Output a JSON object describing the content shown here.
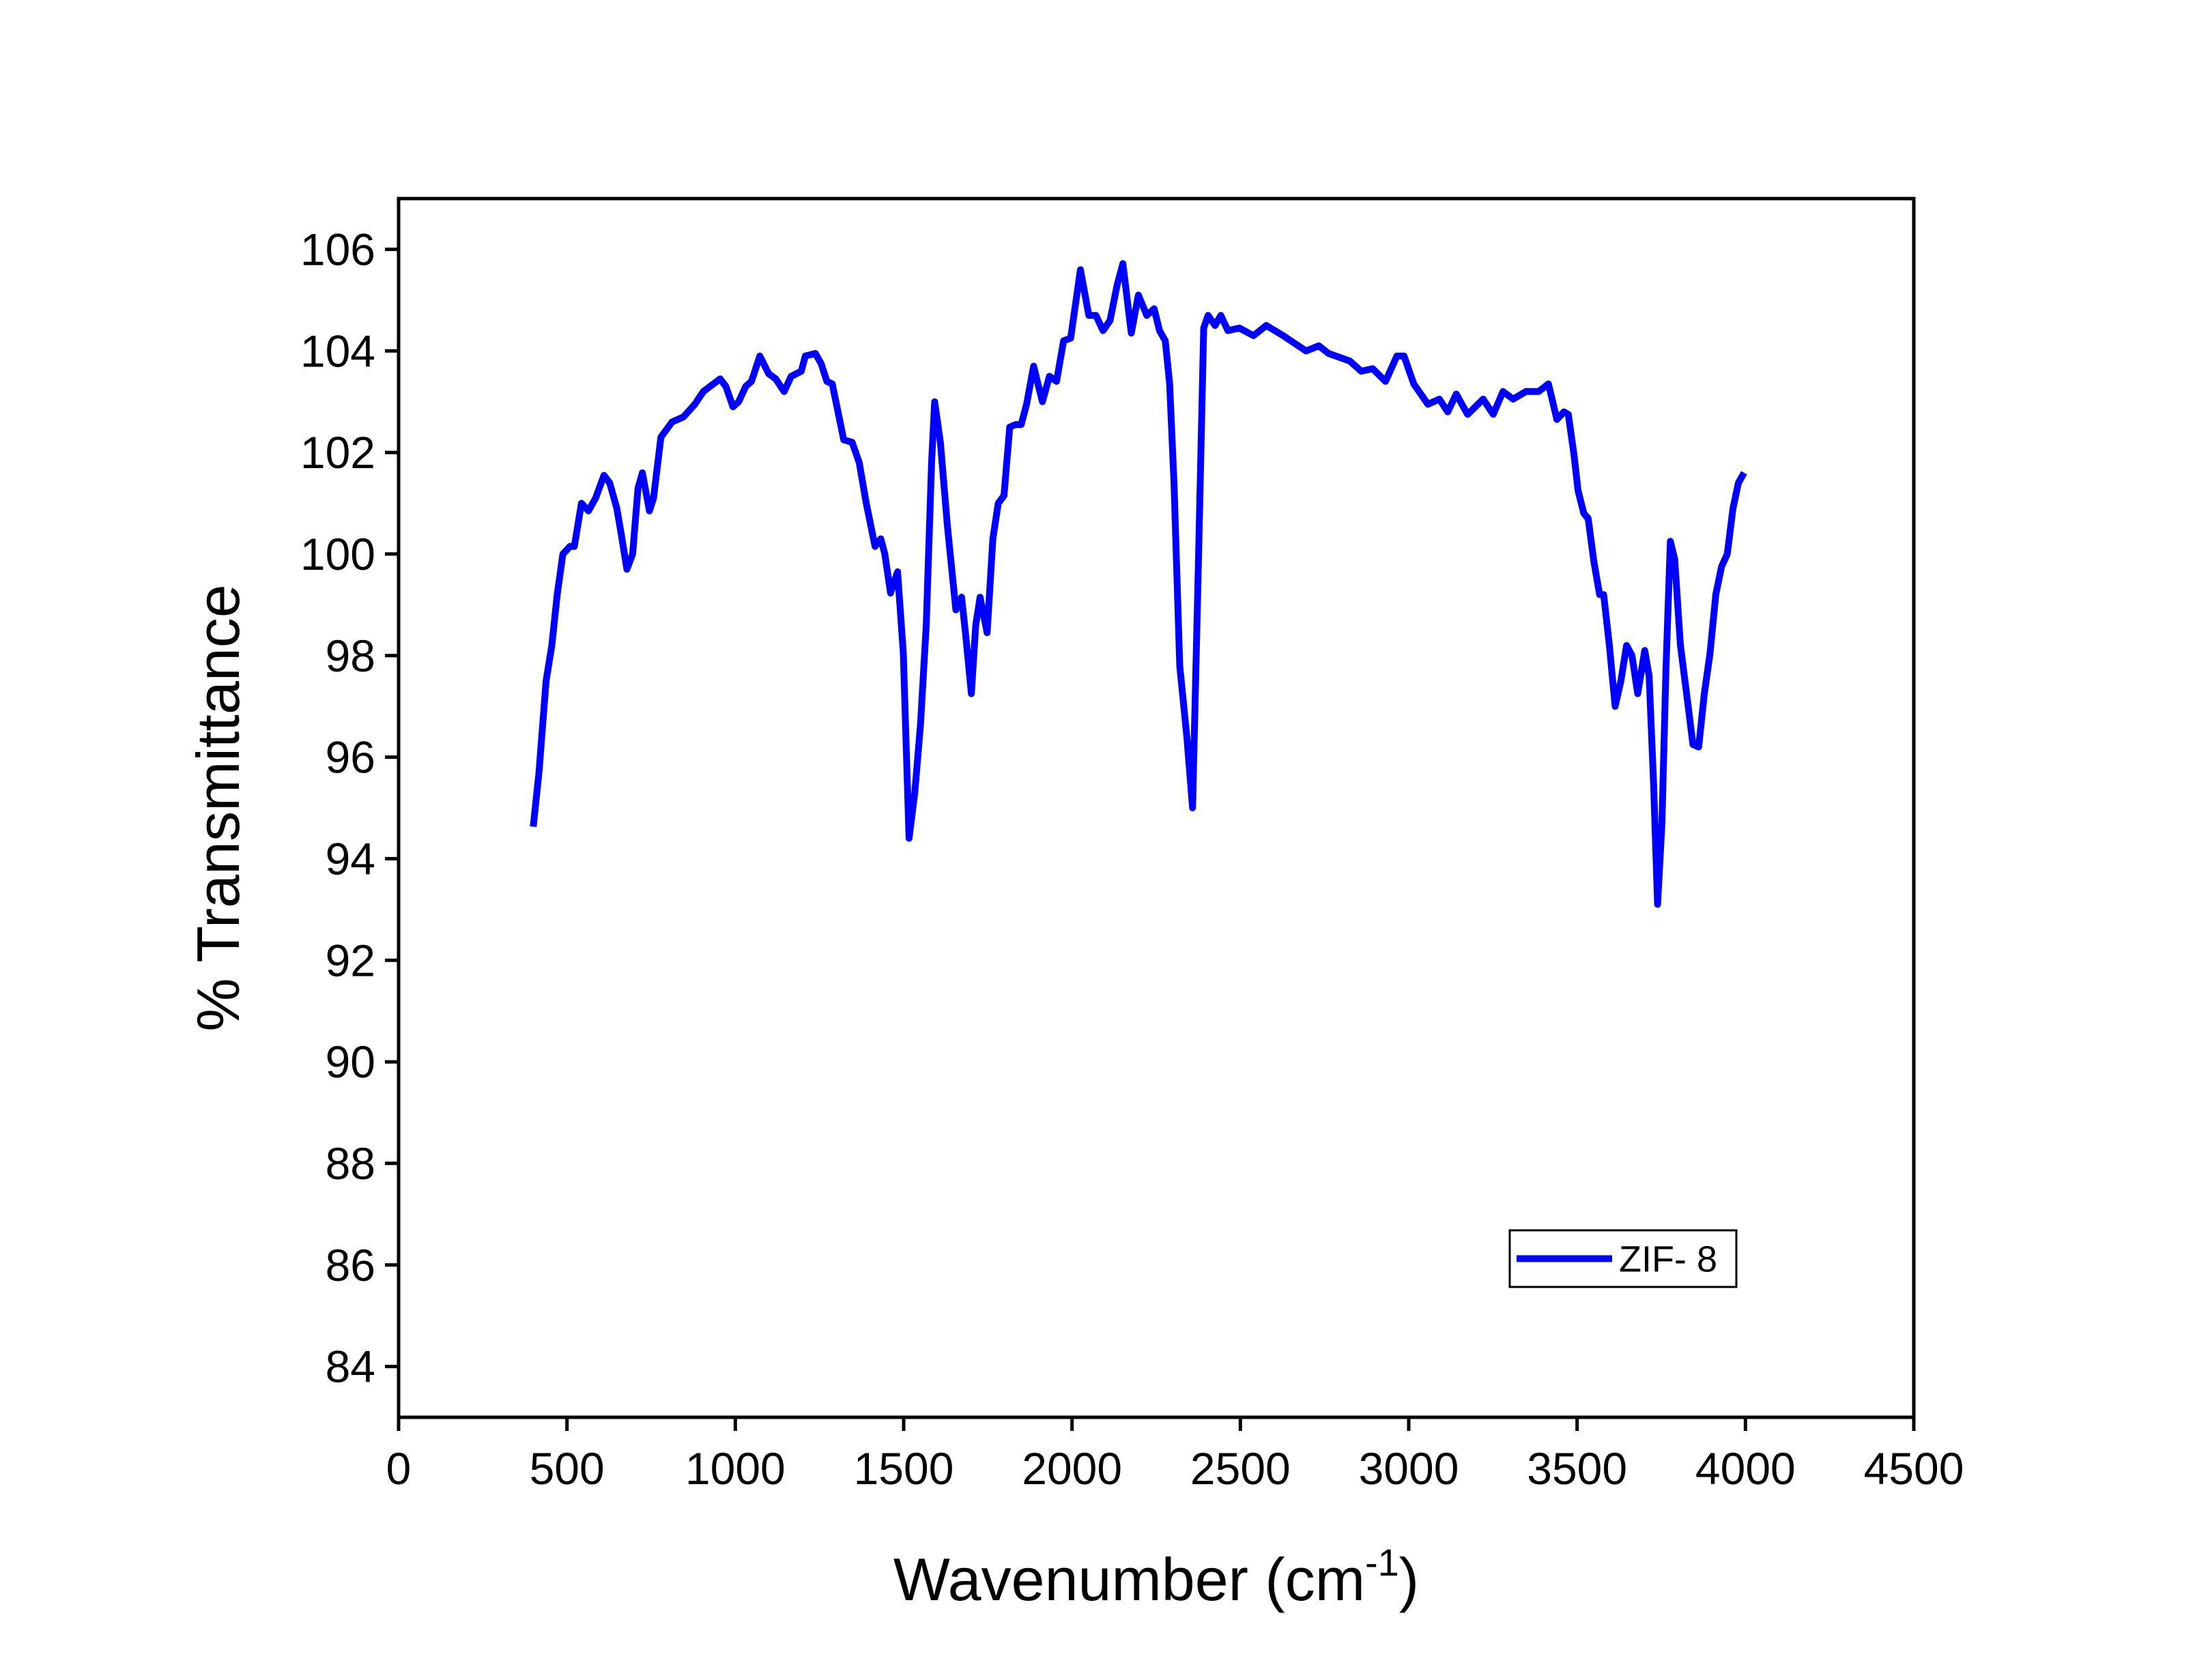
{
  "chart_data": {
    "type": "line",
    "x_label_parts": [
      "Wavenumber (cm",
      "-1",
      ")"
    ],
    "y_label": "% Transmittance",
    "xlim": [
      0,
      4500
    ],
    "xticks": [
      0,
      500,
      1000,
      1500,
      2000,
      2500,
      3000,
      3500,
      4000,
      4500
    ],
    "ylim": [
      83,
      107
    ],
    "yticks": [
      84,
      86,
      88,
      90,
      92,
      94,
      96,
      98,
      100,
      102,
      104,
      106
    ],
    "legend": "lower right",
    "x": [
      400,
      417,
      438,
      455,
      471,
      488,
      509,
      522,
      543,
      564,
      585,
      610,
      627,
      648,
      661,
      678,
      695,
      711,
      724,
      745,
      757,
      779,
      812,
      846,
      880,
      905,
      955,
      972,
      993,
      1010,
      1031,
      1048,
      1073,
      1099,
      1120,
      1145,
      1166,
      1196,
      1208,
      1238,
      1255,
      1272,
      1288,
      1322,
      1347,
      1368,
      1389,
      1415,
      1432,
      1444,
      1461,
      1482,
      1499,
      1516,
      1533,
      1550,
      1567,
      1583,
      1592,
      1609,
      1630,
      1655,
      1672,
      1685,
      1701,
      1714,
      1727,
      1748,
      1765,
      1781,
      1798,
      1815,
      1832,
      1849,
      1865,
      1886,
      1912,
      1933,
      1954,
      1975,
      1996,
      2025,
      2050,
      2071,
      2092,
      2113,
      2134,
      2151,
      2176,
      2197,
      2222,
      2244,
      2260,
      2277,
      2290,
      2303,
      2320,
      2341,
      2358,
      2374,
      2391,
      2404,
      2425,
      2442,
      2463,
      2497,
      2539,
      2577,
      2627,
      2661,
      2695,
      2733,
      2762,
      2825,
      2859,
      2893,
      2931,
      2965,
      2986,
      3015,
      3057,
      3091,
      3116,
      3141,
      3175,
      3221,
      3251,
      3280,
      3310,
      3348,
      3386,
      3415,
      3440,
      3461,
      3474,
      3491,
      3503,
      3520,
      3533,
      3550,
      3567,
      3579,
      3596,
      3613,
      3630,
      3647,
      3663,
      3680,
      3701,
      3714,
      3727,
      3739,
      3752,
      3764,
      3777,
      3790,
      3807,
      3828,
      3844,
      3861,
      3878,
      3895,
      3912,
      3929,
      3946,
      3963,
      3979,
      3996
    ],
    "series": [
      {
        "name": "ZIF- 8",
        "color": "#0000ff",
        "values": [
          94.63,
          95.7,
          97.5,
          98.2,
          99.2,
          100.0,
          100.15,
          100.15,
          101.0,
          100.85,
          101.1,
          101.55,
          101.4,
          100.9,
          100.4,
          99.7,
          100.0,
          101.3,
          101.6,
          100.85,
          101.1,
          102.3,
          102.6,
          102.7,
          102.95,
          103.2,
          103.45,
          103.3,
          102.9,
          103.0,
          103.3,
          103.4,
          103.9,
          103.55,
          103.45,
          103.2,
          103.5,
          103.6,
          103.9,
          103.95,
          103.75,
          103.4,
          103.35,
          102.25,
          102.2,
          101.8,
          101.0,
          100.15,
          100.3,
          100.0,
          99.23,
          99.65,
          98.05,
          94.4,
          95.3,
          96.65,
          98.6,
          101.8,
          103.0,
          102.2,
          100.55,
          98.9,
          99.15,
          98.35,
          97.25,
          98.6,
          99.15,
          98.45,
          100.3,
          101.0,
          101.15,
          102.5,
          102.55,
          102.55,
          102.95,
          103.7,
          103.0,
          103.5,
          103.4,
          104.2,
          104.25,
          105.6,
          104.7,
          104.7,
          104.4,
          104.6,
          105.3,
          105.72,
          104.35,
          105.1,
          104.7,
          104.83,
          104.4,
          104.2,
          103.35,
          101.4,
          97.8,
          96.4,
          95.0,
          99.45,
          104.45,
          104.7,
          104.5,
          104.7,
          104.4,
          104.45,
          104.3,
          104.5,
          104.3,
          104.15,
          104.0,
          104.1,
          103.95,
          103.8,
          103.6,
          103.65,
          103.4,
          103.9,
          103.9,
          103.35,
          102.95,
          103.05,
          102.8,
          103.15,
          102.75,
          103.05,
          102.75,
          103.2,
          103.05,
          103.2,
          103.2,
          103.35,
          102.65,
          102.8,
          102.75,
          101.95,
          101.25,
          100.8,
          100.7,
          99.85,
          99.2,
          99.2,
          98.2,
          97.0,
          97.5,
          98.2,
          98.0,
          97.25,
          98.1,
          97.6,
          95.5,
          93.1,
          94.7,
          97.75,
          100.25,
          99.9,
          98.2,
          97.1,
          96.25,
          96.2,
          97.25,
          98.05,
          99.2,
          99.75,
          100.0,
          100.9,
          101.4,
          101.6
        ]
      }
    ]
  }
}
